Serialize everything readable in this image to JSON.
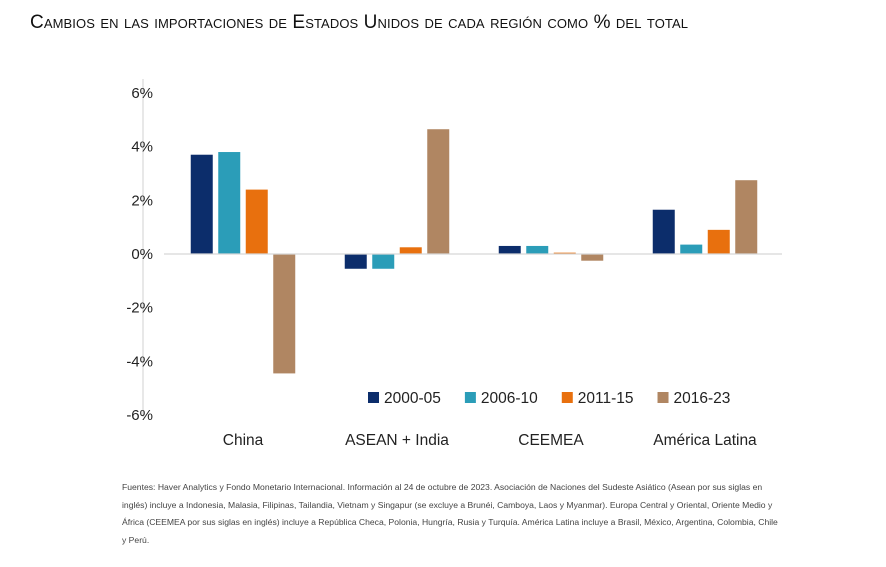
{
  "title": "Cambios en las importaciones de Estados Unidos de cada región como % del total",
  "source_note": "Fuentes: Haver Analytics y Fondo Monetario Internacional. Información al 24 de octubre de 2023. Asociación de Naciones del Sudeste Asiático (Asean por sus siglas en inglés) incluye a Indonesia, Malasia, Filipinas, Tailandia, Vietnam y Singapur (se excluye a Brunéi, Camboya, Laos y Myanmar). Europa Central y Oriental, Oriente Medio y África (CEEMEA por sus siglas en inglés) incluye a República Checa, Polonia, Hungría, Rusia y Turquía. América Latina incluye a Brasil, México, Argentina, Colombia, Chile y Perú.",
  "chart_data": {
    "type": "bar",
    "title": "Cambios en las importaciones de Estados Unidos de cada región como % del total",
    "xlabel": "",
    "ylabel": "",
    "ylim": [
      -6,
      6
    ],
    "yticks": [
      6,
      4,
      2,
      0,
      -2,
      -4,
      -6
    ],
    "ytick_labels": [
      "6%",
      "4%",
      "2%",
      "0%",
      "-2%",
      "-4%",
      "-6%"
    ],
    "categories": [
      "China",
      "ASEAN + India",
      "CEEMEA",
      "América Latina"
    ],
    "series": [
      {
        "name": "2000-05",
        "color": "#0c2d6b",
        "values": [
          3.7,
          -0.55,
          0.3,
          1.65
        ]
      },
      {
        "name": "2006-10",
        "color": "#2b9db8",
        "values": [
          3.8,
          -0.55,
          0.3,
          0.35
        ]
      },
      {
        "name": "2011-15",
        "color": "#e8700e",
        "values": [
          2.4,
          0.25,
          0.05,
          0.9
        ]
      },
      {
        "name": "2016-23",
        "color": "#b08662",
        "values": [
          -4.45,
          4.65,
          -0.25,
          2.75
        ]
      }
    ],
    "legend_position": "lower-right",
    "grid": false
  }
}
